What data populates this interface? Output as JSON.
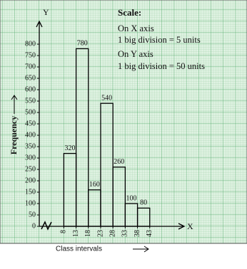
{
  "chart_data": {
    "type": "histogram",
    "y_label": "Frequency",
    "x_label": "Class intervals",
    "x_axis_letter": "X",
    "y_axis_letter": "Y",
    "annotations": [
      "Scale:",
      "On X axis",
      "1 big division = 5 units",
      "On Y axis",
      "1 big division = 50 units"
    ],
    "bins": [
      8,
      13,
      18,
      23,
      28,
      33,
      38,
      43
    ],
    "values": [
      320,
      780,
      160,
      540,
      260,
      100,
      80
    ],
    "xlim": [
      -2,
      56
    ],
    "xticks": [
      8,
      13,
      18,
      23,
      28,
      33,
      38,
      43
    ],
    "ylim": [
      0,
      900
    ],
    "yticks": [
      0,
      50,
      100,
      150,
      200,
      250,
      300,
      350,
      400,
      450,
      500,
      550,
      600,
      650,
      700,
      750,
      800
    ],
    "bar_color": "none",
    "grid": true
  }
}
